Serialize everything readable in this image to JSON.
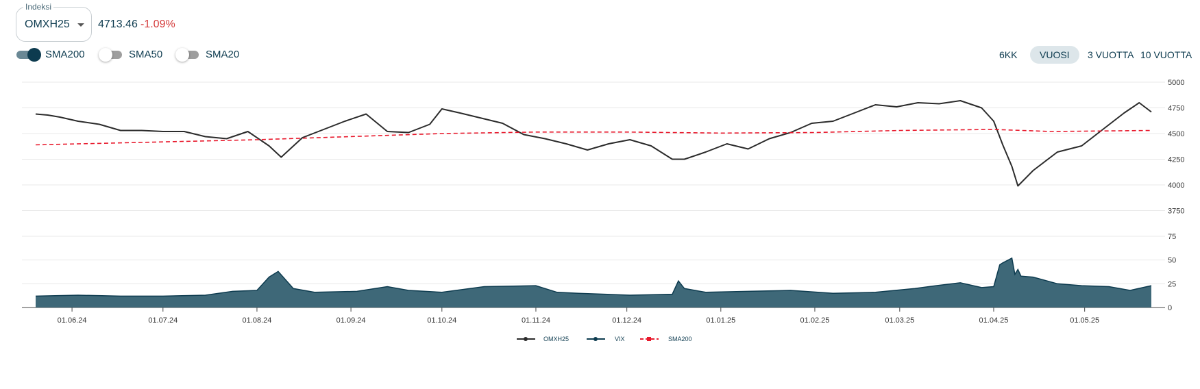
{
  "header": {
    "index_label": "Indeksi",
    "index_value": "OMXH25",
    "price": "4713.46",
    "change": "-1.09%"
  },
  "toggles": [
    {
      "label": "SMA200",
      "on": true
    },
    {
      "label": "SMA50",
      "on": false
    },
    {
      "label": "SMA20",
      "on": false
    }
  ],
  "ranges": [
    {
      "label": "6KK",
      "active": false
    },
    {
      "label": "VUOSI",
      "active": true
    },
    {
      "label": "3 VUOTTA",
      "active": false
    },
    {
      "label": "10 VUOTTA",
      "active": false
    }
  ],
  "colors": {
    "omx_line": "#2b2b2b",
    "sma_line": "#e8192c",
    "vix_fill": "#3e6878",
    "vix_line": "#0d3b4f",
    "change_negative": "#d43b3b",
    "grid": "#e8e8e8"
  },
  "chart_data": [
    {
      "type": "line",
      "title": "",
      "x_type": "date",
      "x_range": [
        "2024-05-20",
        "2025-05-23"
      ],
      "x_ticks": [
        "01.06.24",
        "01.07.24",
        "01.08.24",
        "01.09.24",
        "01.10.24",
        "01.11.24",
        "01.12.24",
        "01.01.25",
        "01.02.25",
        "01.03.25",
        "01.04.25",
        "01.05.25"
      ],
      "ylim": [
        3500,
        5000
      ],
      "y_ticks": [
        5000,
        4750,
        4500,
        4250,
        4000,
        3750
      ],
      "grid": true,
      "series": [
        {
          "name": "OMXH25",
          "x": [
            "2024-05-20",
            "2024-05-24",
            "2024-05-28",
            "2024-06-03",
            "2024-06-10",
            "2024-06-17",
            "2024-06-24",
            "2024-07-01",
            "2024-07-08",
            "2024-07-15",
            "2024-07-22",
            "2024-07-29",
            "2024-08-05",
            "2024-08-09",
            "2024-08-16",
            "2024-08-23",
            "2024-08-30",
            "2024-09-06",
            "2024-09-13",
            "2024-09-20",
            "2024-09-27",
            "2024-10-01",
            "2024-10-07",
            "2024-10-14",
            "2024-10-21",
            "2024-10-28",
            "2024-11-04",
            "2024-11-11",
            "2024-11-18",
            "2024-11-25",
            "2024-12-02",
            "2024-12-09",
            "2024-12-16",
            "2024-12-20",
            "2024-12-27",
            "2025-01-03",
            "2025-01-10",
            "2025-01-17",
            "2025-01-24",
            "2025-01-31",
            "2025-02-07",
            "2025-02-14",
            "2025-02-21",
            "2025-02-28",
            "2025-03-07",
            "2025-03-14",
            "2025-03-21",
            "2025-03-28",
            "2025-04-01",
            "2025-04-04",
            "2025-04-07",
            "2025-04-09",
            "2025-04-14",
            "2025-04-22",
            "2025-04-30",
            "2025-05-07",
            "2025-05-14",
            "2025-05-19",
            "2025-05-23"
          ],
          "y": [
            4690,
            4680,
            4660,
            4620,
            4590,
            4530,
            4530,
            4520,
            4520,
            4470,
            4450,
            4520,
            4380,
            4270,
            4460,
            4540,
            4620,
            4690,
            4520,
            4510,
            4590,
            4740,
            4700,
            4650,
            4600,
            4490,
            4450,
            4400,
            4340,
            4400,
            4440,
            4380,
            4250,
            4250,
            4320,
            4400,
            4350,
            4450,
            4510,
            4600,
            4620,
            4700,
            4780,
            4760,
            4800,
            4790,
            4820,
            4750,
            4620,
            4390,
            4180,
            3990,
            4140,
            4320,
            4380,
            4540,
            4700,
            4800,
            4710
          ]
        },
        {
          "name": "SMA200",
          "x": [
            "2024-05-20",
            "2024-08-01",
            "2024-10-01",
            "2024-11-01",
            "2024-12-01",
            "2025-01-01",
            "2025-02-01",
            "2025-03-01",
            "2025-04-01",
            "2025-04-20",
            "2025-05-23"
          ],
          "y": [
            4390,
            4440,
            4500,
            4515,
            4515,
            4505,
            4510,
            4530,
            4540,
            4520,
            4530
          ]
        }
      ]
    },
    {
      "type": "area",
      "title": "",
      "x_type": "date",
      "x_range": [
        "2024-05-20",
        "2025-05-23"
      ],
      "ylim": [
        0,
        75
      ],
      "y_ticks": [
        75,
        50,
        25,
        0
      ],
      "grid": true,
      "series": [
        {
          "name": "VIX",
          "x": [
            "2024-05-20",
            "2024-06-03",
            "2024-06-17",
            "2024-07-01",
            "2024-07-15",
            "2024-07-24",
            "2024-08-01",
            "2024-08-05",
            "2024-08-08",
            "2024-08-13",
            "2024-08-20",
            "2024-09-03",
            "2024-09-13",
            "2024-09-20",
            "2024-10-01",
            "2024-10-15",
            "2024-11-01",
            "2024-11-08",
            "2024-11-15",
            "2024-12-02",
            "2024-12-16",
            "2024-12-18",
            "2024-12-20",
            "2024-12-27",
            "2025-01-10",
            "2025-01-24",
            "2025-02-07",
            "2025-02-21",
            "2025-03-06",
            "2025-03-13",
            "2025-03-21",
            "2025-03-28",
            "2025-04-01",
            "2025-04-03",
            "2025-04-04",
            "2025-04-07",
            "2025-04-08",
            "2025-04-09",
            "2025-04-10",
            "2025-04-14",
            "2025-04-22",
            "2025-04-30",
            "2025-05-09",
            "2025-05-16",
            "2025-05-23"
          ],
          "y": [
            12,
            13,
            12,
            12,
            13,
            17,
            18,
            32,
            38,
            20,
            16,
            17,
            22,
            18,
            16,
            22,
            23,
            16,
            15,
            13,
            14,
            28,
            20,
            16,
            17,
            18,
            15,
            16,
            20,
            23,
            26,
            21,
            22,
            45,
            47,
            52,
            35,
            40,
            33,
            32,
            25,
            23,
            22,
            18,
            23
          ]
        }
      ]
    }
  ],
  "legend": [
    "OMXH25",
    "VIX",
    "SMA200"
  ]
}
